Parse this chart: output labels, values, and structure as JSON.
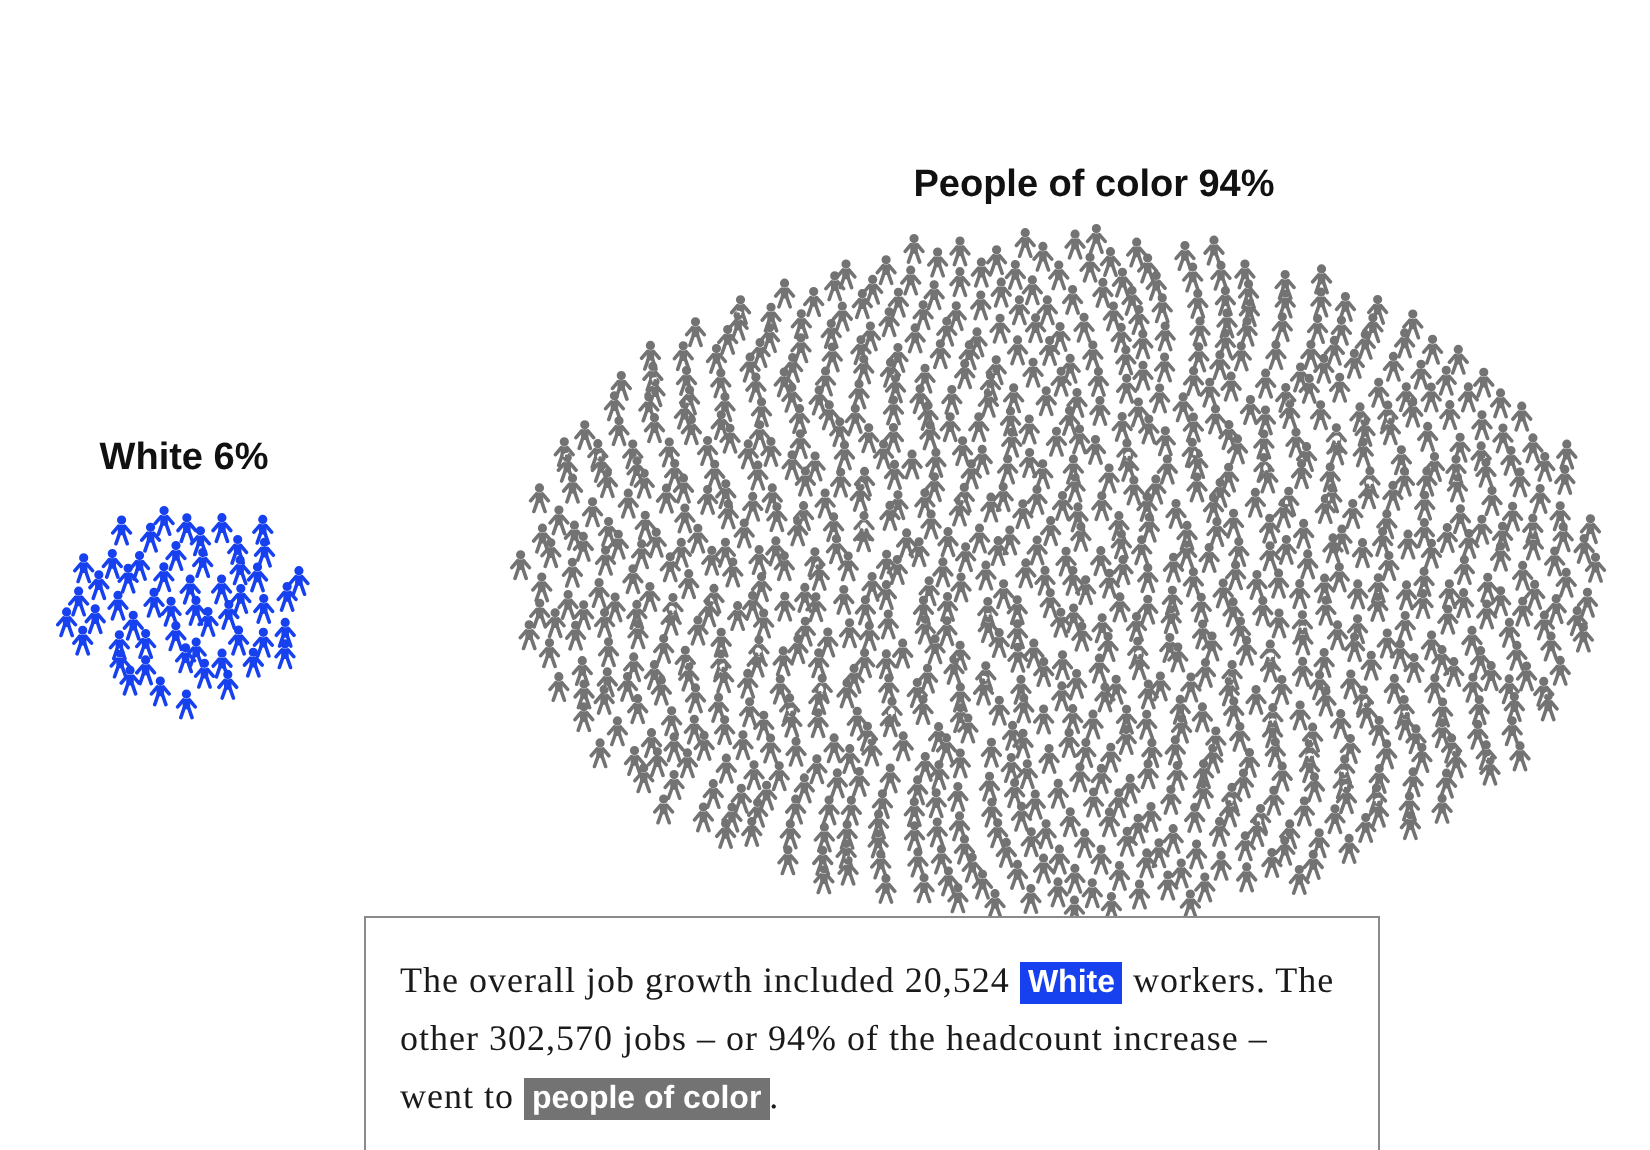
{
  "chart_data": {
    "type": "other",
    "categories": [
      "White",
      "People of color"
    ],
    "values": [
      6,
      94
    ],
    "value_labels": [
      "6%",
      "94%"
    ],
    "colors": [
      "#1741ee",
      "#737373"
    ],
    "annotations": [
      "The overall job growth included 20,524 White workers. The other 302,570 jobs – or 94% of the headcount increase – went to people of color."
    ]
  }
}
